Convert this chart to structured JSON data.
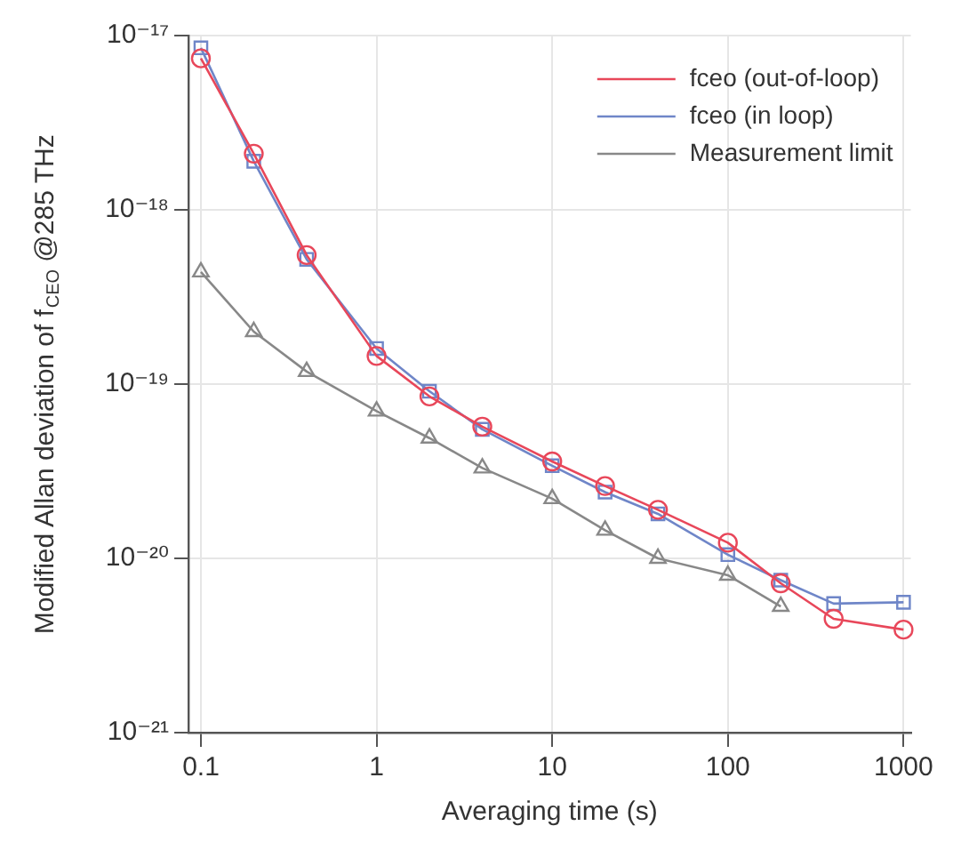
{
  "chart_data": {
    "type": "line",
    "xlabel": "Averaging time (s)",
    "ylabel": "Modified Allan deviation of f$_{CEO}$ @285 THz",
    "x": [
      0.1,
      0.2,
      0.4,
      1,
      2,
      4,
      10,
      20,
      40,
      100,
      200,
      400,
      1000
    ],
    "series": [
      {
        "name": "fceo (out-of-loop)",
        "color": "#e8475a",
        "marker": "circle",
        "values": [
          7.4e-18,
          2.1e-18,
          5.5e-19,
          1.45e-19,
          8.5e-20,
          5.7e-20,
          3.6e-20,
          2.6e-20,
          1.9e-20,
          1.23e-20,
          7.2e-21,
          4.5e-21,
          3.9e-21
        ]
      },
      {
        "name": "fceo (in loop)",
        "color": "#6f86c8",
        "marker": "square",
        "values": [
          8.5e-18,
          1.9e-18,
          5.2e-19,
          1.6e-19,
          9.1e-20,
          5.5e-20,
          3.4e-20,
          2.4e-20,
          1.8e-20,
          1.05e-20,
          7.5e-21,
          5.5e-21,
          5.6e-21
        ]
      },
      {
        "name": "Measurement limit",
        "color": "#888888",
        "marker": "triangle",
        "x": [
          0.1,
          0.2,
          0.4,
          1,
          2,
          4,
          10,
          20,
          40,
          100,
          200
        ],
        "values": [
          4.4e-19,
          2e-19,
          1.18e-19,
          7e-20,
          4.9e-20,
          3.3e-20,
          2.2e-20,
          1.45e-20,
          1e-20,
          8e-21,
          5.3e-21
        ]
      }
    ],
    "log": "xy",
    "xlim": [
      0.085,
      1100
    ],
    "xticks": [
      0.1,
      1,
      10,
      100,
      1000
    ],
    "ylim": [
      1e-21,
      1e-17
    ],
    "yticks": [
      {
        "value": 1e-21,
        "label": "10⁻²¹"
      },
      {
        "value": 1e-20,
        "label": "10⁻²⁰"
      },
      {
        "value": 1e-19,
        "label": "10⁻¹⁹"
      },
      {
        "value": 1e-18,
        "label": "10⁻¹⁸"
      },
      {
        "value": 1e-17,
        "label": "10⁻¹⁷"
      }
    ],
    "grid": true,
    "legend": "top right",
    "line_style": "solid"
  }
}
